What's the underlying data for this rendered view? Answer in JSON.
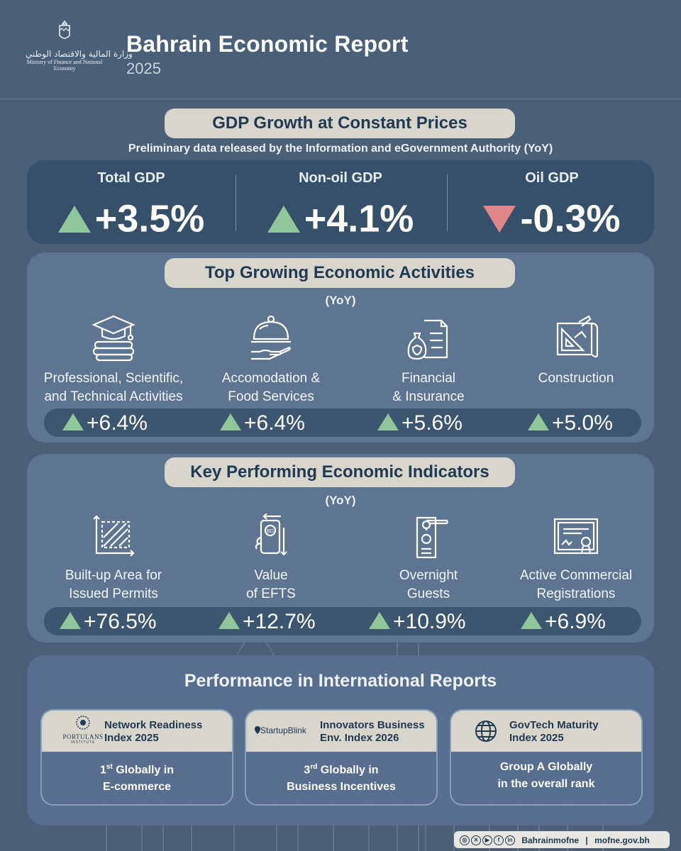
{
  "header": {
    "logo_arabic": "وزارة المالية والاقتصاد الوطني",
    "logo_english": "Ministry of Finance and National Economy",
    "title": "Bahrain Economic Report",
    "year": "2025"
  },
  "gdp": {
    "heading": "GDP Growth at Constant Prices",
    "subheading": "Preliminary data released by the Information and eGovernment Authority (YoY)",
    "items": [
      {
        "label": "Total GDP",
        "value": "+3.5%",
        "direction": "up"
      },
      {
        "label": "Non-oil GDP",
        "value": "+4.1%",
        "direction": "up"
      },
      {
        "label": "Oil GDP",
        "value": "-0.3%",
        "direction": "down"
      }
    ]
  },
  "activities": {
    "heading": "Top Growing Economic Activities",
    "yoy": "(YoY)",
    "items": [
      {
        "line1": "Professional, Scientific,",
        "line2": "and Technical Activities",
        "value": "+6.4%",
        "icon": "graduation-cap-books-icon"
      },
      {
        "line1": "Accomodation &",
        "line2": "Food Services",
        "value": "+6.4%",
        "icon": "food-cloche-icon"
      },
      {
        "line1": "Financial",
        "line2": "& Insurance",
        "value": "+5.6%",
        "icon": "money-bag-shield-icon"
      },
      {
        "line1": "Construction",
        "line2": "",
        "value": "+5.0%",
        "icon": "blueprint-icon"
      }
    ]
  },
  "indicators": {
    "heading": "Key Performing Economic Indicators",
    "yoy": "(YoY)",
    "items": [
      {
        "line1": "Built-up Area for",
        "line2": "Issued Permits",
        "value": "+76.5%",
        "icon": "area-measure-icon"
      },
      {
        "line1": "Value",
        "line2": "of EFTS",
        "value": "+12.7%",
        "icon": "phone-transfer-icon"
      },
      {
        "line1": "Overnight",
        "line2": "Guests",
        "value": "+10.9%",
        "icon": "door-hanger-icon"
      },
      {
        "line1": "Active Commercial",
        "line2": "Registrations",
        "value": "+6.9%",
        "icon": "certificate-icon"
      }
    ]
  },
  "international": {
    "heading": "Performance in International Reports",
    "cards": [
      {
        "logo": "PORTULANS",
        "logo_sub": "INSTITUTE",
        "title1": "Network Readiness",
        "title2": "Index 2025",
        "rank_num": "1",
        "rank_sup": "st",
        "rank_rest": " Globally in",
        "body2": "E-commerce"
      },
      {
        "logo": "StartupBlink",
        "title1": "Innovators Business",
        "title2": "Env. Index 2026",
        "rank_num": "3",
        "rank_sup": "rd",
        "rank_rest": " Globally in",
        "body2": "Business Incentives"
      },
      {
        "title1": "GovTech Maturity",
        "title2": "Index 2025",
        "body1": "Group A Globally",
        "body2": "in the overall rank",
        "icon": "globe-icon"
      }
    ]
  },
  "footer": {
    "handle": "Bahrainmofne",
    "separator": "|",
    "website": "mofne.gov.bh"
  },
  "colors": {
    "background": "#4a5f78",
    "up": "#8fc79a",
    "down": "#e0868a",
    "pill": "#d8d5cc",
    "text_dark": "#203a52"
  }
}
